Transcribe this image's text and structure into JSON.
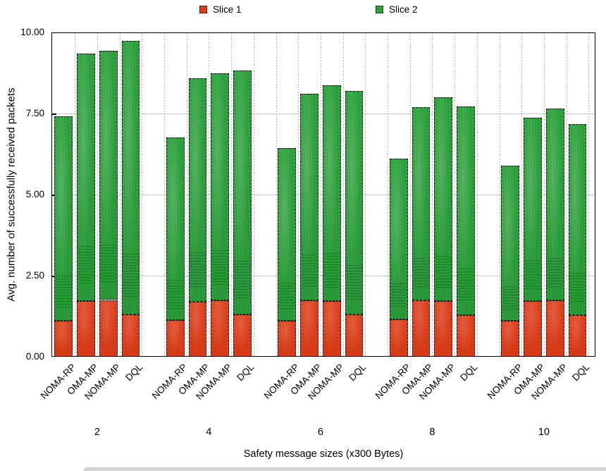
{
  "chart_data": {
    "type": "bar",
    "stacked": true,
    "title": "",
    "xlabel": "Safety message sizes (x300 Bytes)",
    "ylabel": "Avg. number of successfully received packets",
    "ylim": [
      0,
      10
    ],
    "yticks": [
      0,
      2.5,
      5,
      7.5,
      10
    ],
    "ytick_labels": [
      "0.00",
      "2.50",
      "5.00",
      "7.50",
      "10.00"
    ],
    "groups": [
      "2",
      "4",
      "6",
      "8",
      "10"
    ],
    "bars_per_group": [
      "NOMA-RP",
      "OMA-MP",
      "NOMA-MP",
      "DQL"
    ],
    "grid": {
      "horizontal": true,
      "vertical_dotted": true
    },
    "legend_position": "top",
    "series": [
      {
        "name": "Slice 1",
        "color": "#dc3c19",
        "values": [
          [
            1.11,
            1.72,
            1.75,
            1.31
          ],
          [
            1.12,
            1.7,
            1.73,
            1.3
          ],
          [
            1.1,
            1.74,
            1.71,
            1.3
          ],
          [
            1.16,
            1.73,
            1.71,
            1.28
          ],
          [
            1.1,
            1.72,
            1.73,
            1.28
          ]
        ]
      },
      {
        "name": "Slice 2",
        "color": "#2da03c",
        "values": [
          [
            6.31,
            7.62,
            7.69,
            8.42
          ],
          [
            5.64,
            6.88,
            7.02,
            7.52
          ],
          [
            5.33,
            6.37,
            6.67,
            6.9
          ],
          [
            4.95,
            5.96,
            6.29,
            6.43
          ],
          [
            4.8,
            5.65,
            5.93,
            5.9
          ]
        ]
      }
    ],
    "totals": [
      [
        7.42,
        9.34,
        9.44,
        9.73
      ],
      [
        6.76,
        8.58,
        8.75,
        8.82
      ],
      [
        6.43,
        8.11,
        8.38,
        8.2
      ],
      [
        6.11,
        7.69,
        8.0,
        7.71
      ],
      [
        5.9,
        7.37,
        7.66,
        7.18
      ]
    ]
  }
}
